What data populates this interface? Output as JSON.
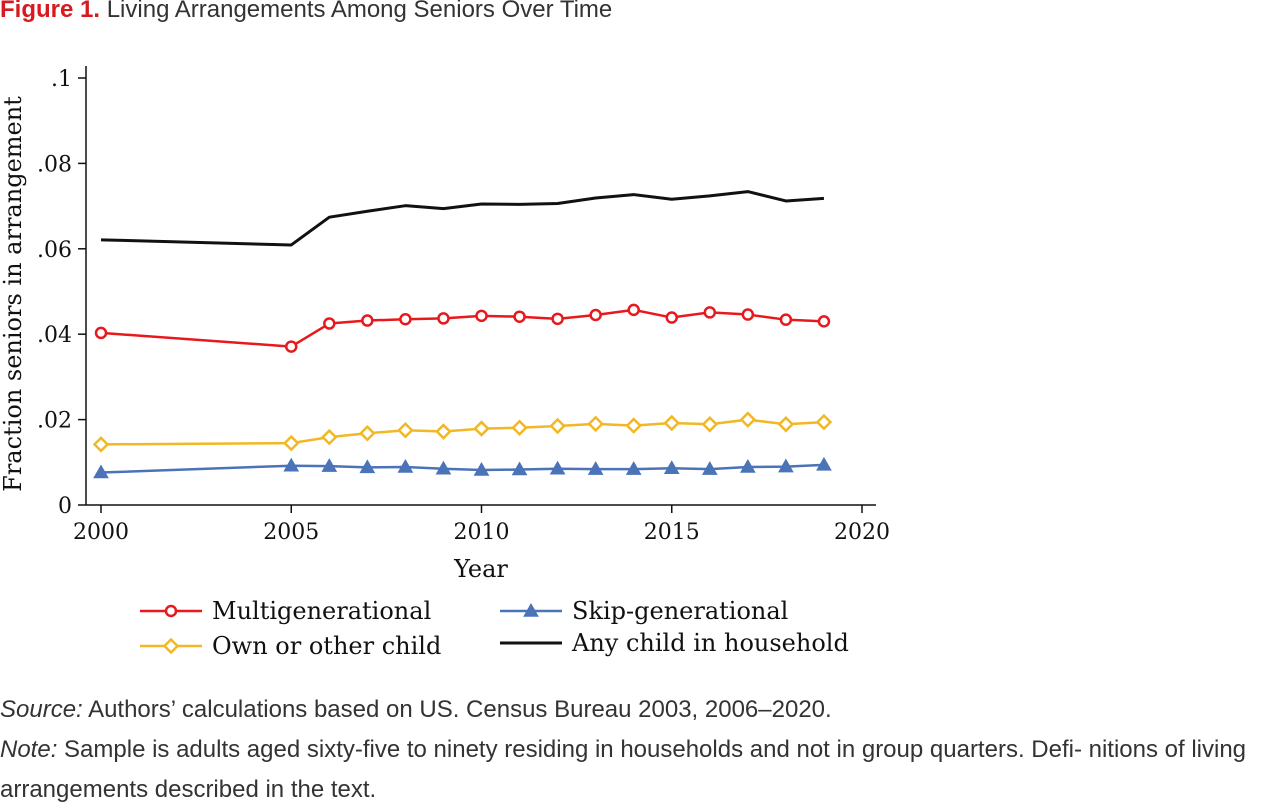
{
  "figure": {
    "label": "Figure 1.",
    "title": "Living Arrangements Among Seniors Over Time"
  },
  "chart_data": {
    "type": "line",
    "xlabel": "Year",
    "ylabel": "Fraction seniors in arrangement",
    "xlim": [
      2000,
      2020
    ],
    "ylim": [
      0,
      0.1
    ],
    "xticks": [
      2000,
      2005,
      2010,
      2015,
      2020
    ],
    "yticks": [
      {
        "value": 0,
        "label": "0"
      },
      {
        "value": 0.02,
        "label": ".02"
      },
      {
        "value": 0.04,
        "label": ".04"
      },
      {
        "value": 0.06,
        "label": ".06"
      },
      {
        "value": 0.08,
        "label": ".08"
      },
      {
        "value": 0.1,
        "label": ".1"
      }
    ],
    "grid": false,
    "legend_position": "bottom",
    "x": [
      2000,
      2005,
      2006,
      2007,
      2008,
      2009,
      2010,
      2011,
      2012,
      2013,
      2014,
      2015,
      2016,
      2017,
      2018,
      2019
    ],
    "series": [
      {
        "name": "Multigenerational",
        "color": "#e8191c",
        "marker": "circle",
        "values": [
          0.0403,
          0.0371,
          0.0425,
          0.0432,
          0.0435,
          0.0437,
          0.0443,
          0.0441,
          0.0436,
          0.0445,
          0.0457,
          0.0439,
          0.0451,
          0.0446,
          0.0434,
          0.043
        ]
      },
      {
        "name": "Skip-generational",
        "color": "#4a73b8",
        "marker": "triangle",
        "values": [
          0.0076,
          0.0092,
          0.0091,
          0.0088,
          0.0089,
          0.0085,
          0.0082,
          0.0083,
          0.0085,
          0.0084,
          0.0084,
          0.0086,
          0.0084,
          0.0089,
          0.009,
          0.0094
        ]
      },
      {
        "name": "Own or other child",
        "color": "#f2b824",
        "marker": "diamond",
        "values": [
          0.0142,
          0.0145,
          0.0159,
          0.0168,
          0.0175,
          0.0172,
          0.0179,
          0.0181,
          0.0185,
          0.019,
          0.0186,
          0.0192,
          0.0189,
          0.02,
          0.0189,
          0.0194
        ]
      },
      {
        "name": "Any child in household",
        "color": "#111111",
        "marker": "none",
        "values": [
          0.0621,
          0.0609,
          0.0674,
          0.0688,
          0.0701,
          0.0694,
          0.0705,
          0.0704,
          0.0706,
          0.0719,
          0.0727,
          0.0716,
          0.0724,
          0.0734,
          0.0712,
          0.0718
        ]
      }
    ]
  },
  "notes": {
    "source_label": "Source:",
    "source_text": " Authors’ calculations based on US. Census Bureau 2003, 2006–2020.",
    "note_label": "Note:",
    "note_text": " Sample is adults aged sixty-five to ninety residing in households and not in group quarters. Defi- nitions of living arrangements described in the text."
  }
}
